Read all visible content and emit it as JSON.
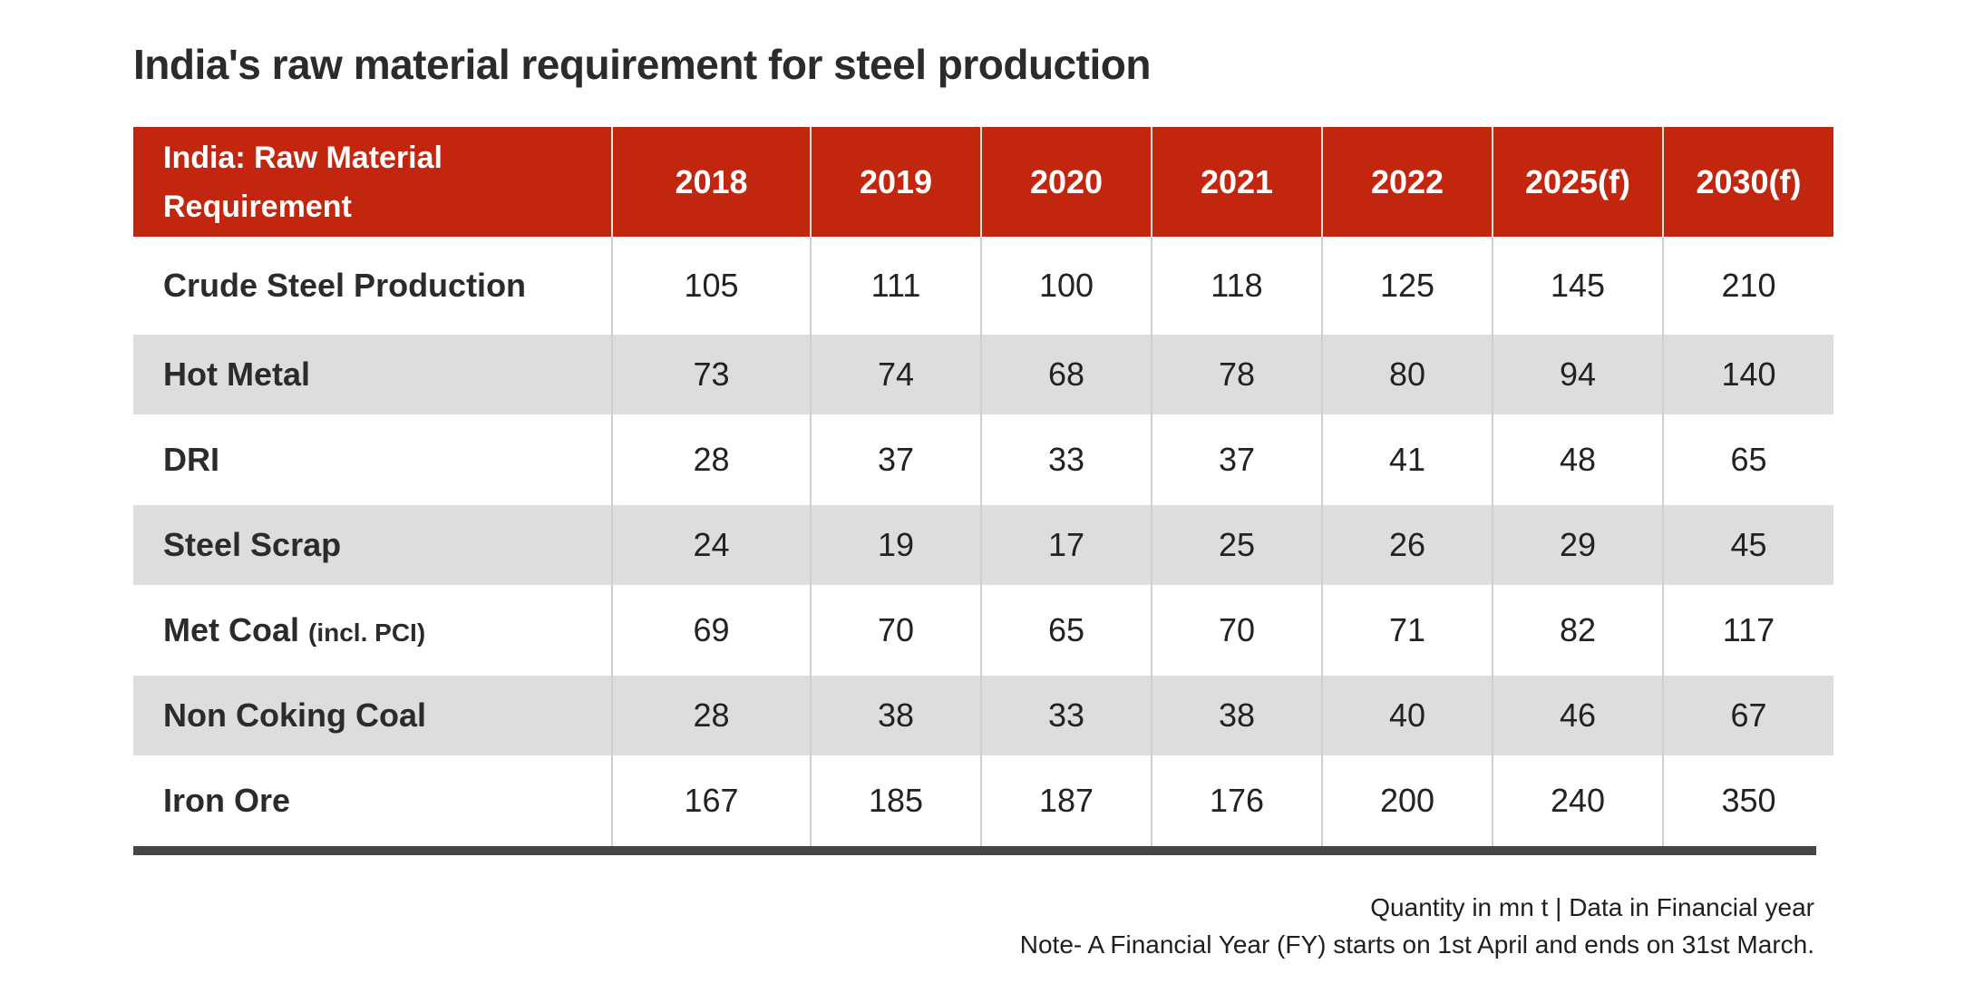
{
  "title": "India's raw material requirement for steel production",
  "chart_data": {
    "type": "table",
    "title": "India's raw material requirement for steel production",
    "header_label": "India: Raw Material Requirement",
    "columns": [
      "2018",
      "2019",
      "2020",
      "2021",
      "2022",
      "2025(f)",
      "2030(f)"
    ],
    "rows": [
      {
        "label": "Crude Steel Production",
        "sub": "",
        "values": [
          "105",
          "111",
          "100",
          "118",
          "125",
          "145",
          "210"
        ]
      },
      {
        "label": "Hot Metal",
        "sub": "",
        "values": [
          "73",
          "74",
          "68",
          "78",
          "80",
          "94",
          "140"
        ]
      },
      {
        "label": "DRI",
        "sub": "",
        "values": [
          "28",
          "37",
          "33",
          "37",
          "41",
          "48",
          "65"
        ]
      },
      {
        "label": "Steel Scrap",
        "sub": "",
        "values": [
          "24",
          "19",
          "17",
          "25",
          "26",
          "29",
          "45"
        ]
      },
      {
        "label": "Met Coal",
        "sub": "(incl. PCI)",
        "values": [
          "69",
          "70",
          "65",
          "70",
          "71",
          "82",
          "117"
        ]
      },
      {
        "label": "Non Coking Coal",
        "sub": "",
        "values": [
          "28",
          "38",
          "33",
          "38",
          "40",
          "46",
          "67"
        ]
      },
      {
        "label": "Iron Ore",
        "sub": "",
        "values": [
          "167",
          "185",
          "187",
          "176",
          "200",
          "240",
          "350"
        ]
      }
    ]
  },
  "footer": {
    "units": "Quantity in mn t | Data in Financial year",
    "note": "Note- A Financial Year (FY) starts on 1st April and ends on 31st March."
  },
  "colors": {
    "header_bg": "#c3260e",
    "stripe_bg": "#dcdddc",
    "rule": "#454545"
  }
}
